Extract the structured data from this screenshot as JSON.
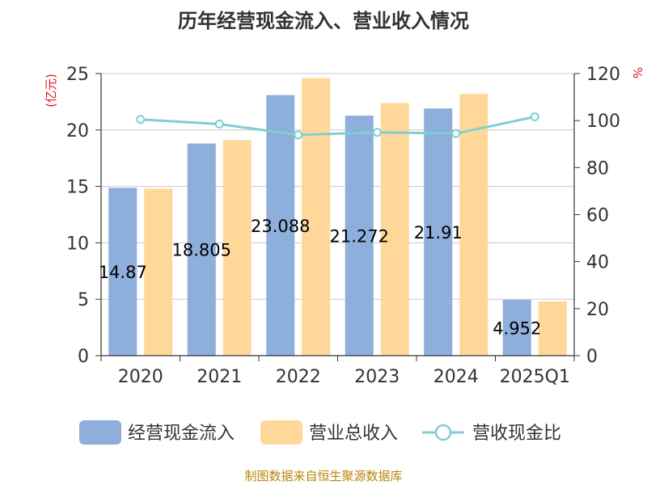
{
  "title": "历年经营现金流入、营业收入情况",
  "source": "制图数据来自恒生聚源数据库",
  "chart_data": {
    "type": "bar",
    "categories": [
      "2020",
      "2021",
      "2022",
      "2023",
      "2024",
      "2025Q1"
    ],
    "series": [
      {
        "name": "经营现金流入",
        "type": "bar",
        "color": "#8eaedb",
        "values": [
          14.87,
          18.805,
          23.088,
          21.272,
          21.91,
          4.952
        ],
        "labels": [
          "14.87",
          "18.805",
          "23.088",
          "21.272",
          "21.91",
          "4.952"
        ]
      },
      {
        "name": "营业总收入",
        "type": "bar",
        "color": "#ffd899",
        "values": [
          14.8,
          19.1,
          24.6,
          22.4,
          23.2,
          4.8
        ]
      },
      {
        "name": "营收现金比",
        "type": "line",
        "axis": "right",
        "color": "#80cfd3",
        "values": [
          100.5,
          98.5,
          93.9,
          95.0,
          94.5,
          101.6
        ]
      }
    ],
    "y_left": {
      "unit": "(亿元)",
      "min": 0,
      "max": 25,
      "ticks": [
        "0",
        "5",
        "10",
        "15",
        "20",
        "25"
      ]
    },
    "y_right": {
      "unit": "%",
      "min": 0,
      "max": 120,
      "ticks": [
        "0",
        "20",
        "40",
        "60",
        "80",
        "100",
        "120"
      ]
    },
    "grid": true,
    "legend_position": "bottom"
  }
}
